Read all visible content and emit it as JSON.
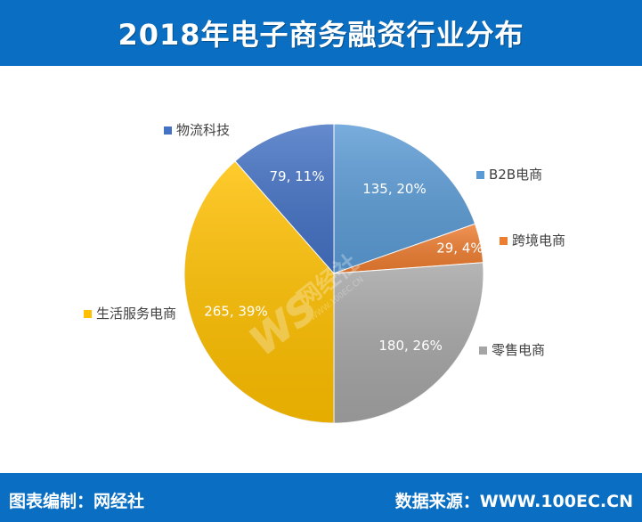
{
  "header": {
    "title": "2018年电子商务融资行业分布"
  },
  "footer": {
    "left_label": "图表编制：网经社",
    "right_label": "数据来源：WWW.100EC.CN"
  },
  "watermark": {
    "text": "网经社",
    "sub": "WWW.100EC.CN",
    "mark": "WS"
  },
  "colors": {
    "header_bg": "#0a6fc2",
    "b2b": "#5b9bd5",
    "cross_border": "#ed7d31",
    "retail": "#a5a5a5",
    "local_services": "#ffc000",
    "logistics": "#4472c4"
  },
  "chart_data": {
    "type": "pie",
    "title": "2018年电子商务融资行业分布",
    "legend_position": "outside-labels",
    "slices": [
      {
        "name": "B2B电商",
        "value": 135,
        "percent": 20,
        "label": "135, 20%",
        "color": "#5b9bd5"
      },
      {
        "name": "跨境电商",
        "value": 29,
        "percent": 4,
        "label": "29, 4%",
        "color": "#ed7d31"
      },
      {
        "name": "零售电商",
        "value": 180,
        "percent": 26,
        "label": "180, 26%",
        "color": "#a5a5a5"
      },
      {
        "name": "生活服务电商",
        "value": 265,
        "percent": 39,
        "label": "265, 39%",
        "color": "#ffc000"
      },
      {
        "name": "物流科技",
        "value": 79,
        "percent": 11,
        "label": "79, 11%",
        "color": "#4472c4"
      }
    ]
  }
}
